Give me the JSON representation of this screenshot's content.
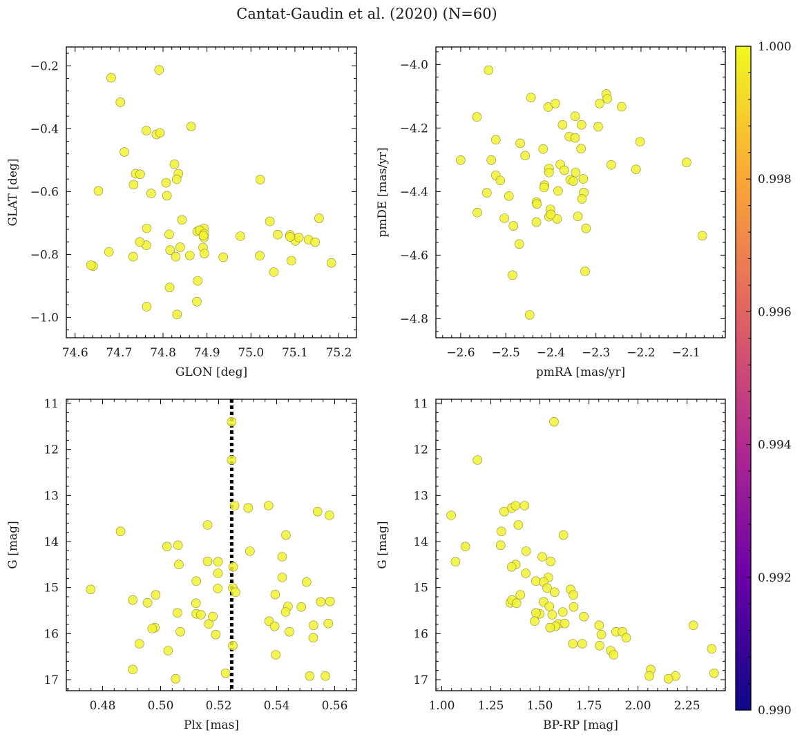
{
  "suptitle": "Cantat-Gaudin et al. (2020) (N=60)",
  "colors": {
    "point": "#f2f231",
    "point_edge": "#8a8a3a",
    "axis": "#000000"
  },
  "colorbar": {
    "min": 0.99,
    "max": 1.0,
    "ticks": [
      "0.990",
      "0.992",
      "0.994",
      "0.996",
      "0.998",
      "1.000"
    ],
    "tick_values": [
      0.99,
      0.992,
      0.994,
      0.996,
      0.998,
      1.0
    ],
    "stops": [
      "#0d0887",
      "#6a00a8",
      "#b12a90",
      "#e16462",
      "#fca636",
      "#f0f921"
    ]
  },
  "chart_data": [
    {
      "type": "scatter",
      "name": "glon-glat",
      "xlabel": "GLON [deg]",
      "ylabel": "GLAT [deg]",
      "xlim": [
        74.58,
        75.24
      ],
      "ylim": [
        -1.065,
        -0.14
      ],
      "invert_y": false,
      "xticks": [
        74.6,
        74.7,
        74.8,
        74.9,
        75.0,
        75.1,
        75.2
      ],
      "xtick_labels": [
        "74.6",
        "74.7",
        "74.8",
        "74.9",
        "75.0",
        "75.1",
        "75.2"
      ],
      "yticks": [
        -1.0,
        -0.8,
        -0.6,
        -0.4,
        -0.2
      ],
      "ytick_labels": [
        "−1.0",
        "−0.8",
        "−0.6",
        "−0.4",
        "−0.2"
      ],
      "x": [
        74.682,
        74.791,
        74.703,
        74.864,
        74.762,
        74.785,
        74.793,
        74.712,
        74.826,
        74.738,
        74.748,
        74.835,
        74.653,
        74.807,
        75.021,
        74.831,
        74.733,
        74.773,
        74.809,
        74.843,
        75.043,
        75.155,
        74.763,
        74.878,
        74.893,
        74.883,
        74.894,
        74.814,
        74.893,
        75.089,
        74.762,
        74.976,
        75.061,
        75.131,
        75.101,
        75.146,
        75.109,
        74.891,
        74.839,
        74.677,
        74.816,
        74.894,
        74.861,
        74.732,
        74.829,
        74.937,
        75.02,
        75.092,
        75.183,
        74.641,
        74.636,
        75.052,
        74.879,
        74.815,
        74.877,
        74.763,
        74.832,
        75.089,
        74.747,
        74.892
      ],
      "y": [
        -0.238,
        -0.213,
        -0.316,
        -0.393,
        -0.406,
        -0.418,
        -0.413,
        -0.474,
        -0.513,
        -0.543,
        -0.545,
        -0.543,
        -0.598,
        -0.572,
        -0.562,
        -0.561,
        -0.578,
        -0.606,
        -0.613,
        -0.69,
        -0.695,
        -0.685,
        -0.717,
        -0.727,
        -0.717,
        -0.723,
        -0.734,
        -0.736,
        -0.746,
        -0.738,
        -0.771,
        -0.742,
        -0.737,
        -0.753,
        -0.757,
        -0.761,
        -0.746,
        -0.778,
        -0.777,
        -0.792,
        -0.786,
        -0.797,
        -0.803,
        -0.807,
        -0.807,
        -0.809,
        -0.804,
        -0.82,
        -0.827,
        -0.837,
        -0.834,
        -0.856,
        -0.884,
        -0.905,
        -0.95,
        -0.966,
        -0.991,
        -0.744,
        -0.76,
        -0.74
      ]
    },
    {
      "type": "scatter",
      "name": "pmra-pmde",
      "xlabel": "pmRA [mas/yr]",
      "ylabel": "pmDE [mas/yr]",
      "xlim": [
        -2.655,
        -2.013
      ],
      "ylim": [
        -4.86,
        -3.945
      ],
      "invert_y": false,
      "xticks": [
        -2.6,
        -2.5,
        -2.4,
        -2.3,
        -2.2,
        -2.1
      ],
      "xtick_labels": [
        "−2.6",
        "−2.5",
        "−2.4",
        "−2.3",
        "−2.2",
        "−2.1"
      ],
      "yticks": [
        -4.8,
        -4.6,
        -4.4,
        -4.2,
        -4.0
      ],
      "ytick_labels": [
        "−4.8",
        "−4.6",
        "−4.4",
        "−4.2",
        "−4.0"
      ],
      "x": [
        -2.538,
        -2.444,
        -2.406,
        -2.39,
        -2.277,
        -2.275,
        -2.292,
        -2.243,
        -2.564,
        -2.374,
        -2.346,
        -2.332,
        -2.295,
        -2.359,
        -2.346,
        -2.468,
        -2.522,
        -2.202,
        -2.333,
        -2.457,
        -2.417,
        -2.6,
        -2.532,
        -2.379,
        -2.404,
        -2.266,
        -2.37,
        -2.211,
        -2.099,
        -2.522,
        -2.404,
        -2.357,
        -2.345,
        -2.512,
        -2.542,
        -2.414,
        -2.415,
        -2.35,
        -2.327,
        -2.493,
        -2.331,
        -2.432,
        -2.401,
        -2.404,
        -2.431,
        -2.563,
        -2.34,
        -2.384,
        -2.503,
        -2.432,
        -2.322,
        -2.483,
        -2.47,
        -2.064,
        -2.485,
        -2.324,
        -2.447,
        -2.328,
        -2.386,
        -2.4
      ],
      "y": [
        -4.018,
        -4.104,
        -4.134,
        -4.123,
        -4.093,
        -4.108,
        -4.123,
        -4.133,
        -4.165,
        -4.19,
        -4.163,
        -4.19,
        -4.196,
        -4.227,
        -4.231,
        -4.248,
        -4.237,
        -4.243,
        -4.265,
        -4.287,
        -4.266,
        -4.301,
        -4.301,
        -4.315,
        -4.327,
        -4.316,
        -4.333,
        -4.33,
        -4.308,
        -4.349,
        -4.34,
        -4.363,
        -4.34,
        -4.365,
        -4.404,
        -4.38,
        -4.387,
        -4.367,
        -4.403,
        -4.414,
        -4.423,
        -4.433,
        -4.456,
        -4.479,
        -4.439,
        -4.466,
        -4.478,
        -4.398,
        -4.484,
        -4.496,
        -4.516,
        -4.508,
        -4.565,
        -4.539,
        -4.663,
        -4.651,
        -4.788,
        -4.36,
        -4.486,
        -4.472
      ]
    },
    {
      "type": "scatter",
      "name": "plx-g",
      "xlabel": "Plx [mas]",
      "ylabel": "G [mag]",
      "xlim": [
        0.4675,
        0.5675
      ],
      "ylim": [
        17.24,
        10.91
      ],
      "invert_y": true,
      "vline": {
        "x": 0.5245,
        "style": "dotted"
      },
      "xticks": [
        0.48,
        0.5,
        0.52,
        0.54,
        0.56
      ],
      "xtick_labels": [
        "0.48",
        "0.50",
        "0.52",
        "0.54",
        "0.56"
      ],
      "yticks": [
        11,
        12,
        13,
        14,
        15,
        16,
        17
      ],
      "ytick_labels": [
        "11",
        "12",
        "13",
        "14",
        "15",
        "16",
        "17"
      ],
      "x": [
        0.5245,
        0.5245,
        0.5255,
        0.5302,
        0.5372,
        0.5541,
        0.5582,
        0.4862,
        0.5162,
        0.5432,
        0.5022,
        0.506,
        0.5308,
        0.5419,
        0.5162,
        0.5198,
        0.5063,
        0.525,
        0.5198,
        0.5123,
        0.5419,
        0.5249,
        0.5503,
        0.4759,
        0.5197,
        0.5258,
        0.4983,
        0.5395,
        0.4904,
        0.4955,
        0.5122,
        0.5439,
        0.5485,
        0.5552,
        0.5584,
        0.5058,
        0.5123,
        0.5139,
        0.5431,
        0.5166,
        0.518,
        0.5374,
        0.5393,
        0.498,
        0.4971,
        0.5068,
        0.519,
        0.5444,
        0.5527,
        0.5249,
        0.4927,
        0.5578,
        0.5526,
        0.5026,
        0.5397,
        0.4904,
        0.5224,
        0.5514,
        0.5568,
        0.5052
      ],
      "y": [
        11.4,
        12.23,
        13.22,
        13.27,
        13.22,
        13.35,
        13.43,
        13.78,
        13.64,
        13.86,
        14.11,
        14.08,
        14.21,
        14.33,
        14.43,
        14.44,
        14.5,
        14.55,
        14.69,
        14.86,
        14.78,
        15.01,
        14.88,
        15.04,
        15.02,
        15.1,
        15.16,
        15.15,
        15.27,
        15.33,
        15.34,
        15.41,
        15.42,
        15.31,
        15.3,
        15.55,
        15.57,
        15.59,
        15.53,
        15.79,
        15.63,
        15.73,
        15.84,
        15.87,
        15.89,
        15.96,
        16.02,
        15.96,
        15.82,
        16.26,
        16.22,
        15.78,
        16.09,
        16.37,
        16.46,
        16.78,
        16.86,
        16.92,
        16.92,
        16.98
      ]
    },
    {
      "type": "scatter",
      "name": "bprp-g",
      "xlabel": "BP-RP [mag]",
      "ylabel": "G [mag]",
      "xlim": [
        0.97,
        2.445
      ],
      "ylim": [
        17.24,
        10.91
      ],
      "invert_y": true,
      "xticks": [
        1.0,
        1.25,
        1.5,
        1.75,
        2.0,
        2.25
      ],
      "xtick_labels": [
        "1.00",
        "1.25",
        "1.50",
        "1.75",
        "2.00",
        "2.25"
      ],
      "yticks": [
        11,
        12,
        13,
        14,
        15,
        16,
        17
      ],
      "ytick_labels": [
        "11",
        "12",
        "13",
        "14",
        "15",
        "16",
        "17"
      ],
      "x": [
        1.572,
        1.182,
        1.048,
        1.318,
        1.357,
        1.376,
        1.422,
        1.304,
        1.39,
        1.62,
        1.12,
        1.07,
        1.3,
        1.43,
        1.512,
        1.377,
        1.555,
        1.428,
        1.356,
        1.48,
        1.543,
        1.519,
        1.537,
        1.575,
        1.656,
        1.671,
        1.4,
        1.349,
        1.358,
        1.381,
        1.519,
        1.672,
        1.548,
        1.499,
        1.48,
        1.724,
        1.563,
        1.617,
        1.594,
        1.473,
        1.58,
        1.627,
        1.552,
        1.802,
        2.282,
        1.813,
        1.888,
        1.921,
        1.94,
        1.668,
        1.716,
        1.804,
        1.861,
        1.876,
        2.376,
        2.065,
        2.388,
        2.191,
        2.058,
        2.155
      ],
      "y": [
        11.4,
        12.23,
        13.43,
        13.35,
        13.27,
        13.22,
        13.22,
        13.78,
        13.64,
        13.86,
        14.11,
        14.44,
        14.08,
        14.21,
        14.33,
        14.5,
        14.43,
        14.69,
        14.55,
        14.86,
        14.78,
        14.88,
        15.01,
        15.1,
        15.04,
        15.16,
        15.16,
        15.33,
        15.27,
        15.34,
        15.31,
        15.42,
        15.41,
        15.57,
        15.55,
        15.63,
        15.59,
        15.53,
        15.79,
        15.73,
        15.84,
        15.78,
        15.87,
        15.82,
        15.82,
        16.02,
        15.96,
        15.96,
        16.09,
        16.22,
        16.22,
        16.26,
        16.37,
        16.46,
        16.33,
        16.78,
        16.86,
        16.92,
        16.92,
        16.98
      ]
    }
  ]
}
